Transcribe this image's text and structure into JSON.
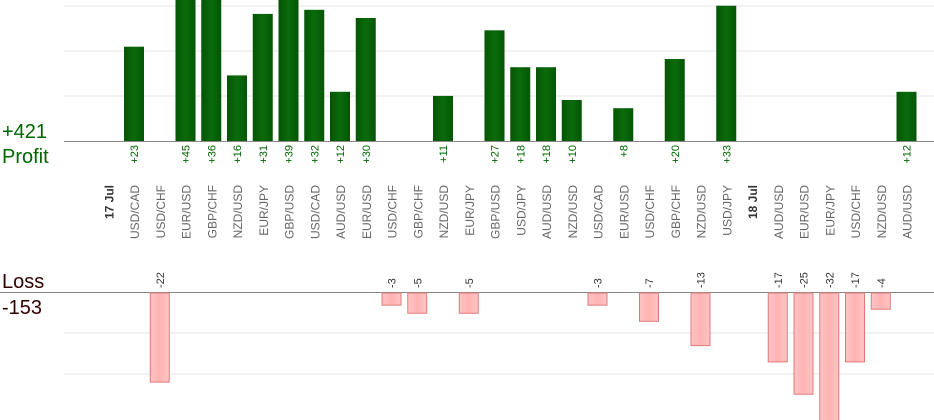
{
  "profit": {
    "label": "Profit",
    "total": "+421"
  },
  "loss": {
    "label": "Loss",
    "total": "-153"
  },
  "colors": {
    "profit_bar": "#0b6b0b",
    "profit_text": "#006600",
    "loss_bar": "#ffb3b3",
    "loss_border": "#e07a7a",
    "grid": "#e6e6e6",
    "axis": "#888888"
  },
  "chart_data": {
    "type": "bar",
    "series": [
      {
        "name": "Profit",
        "values": [
          23,
          null,
          45,
          36,
          16,
          31,
          39,
          32,
          12,
          30,
          null,
          null,
          11,
          null,
          27,
          18,
          18,
          10,
          null,
          8,
          null,
          20,
          null,
          33,
          null,
          null,
          null,
          null,
          null,
          null,
          12
        ]
      },
      {
        "name": "Loss",
        "values": [
          null,
          -22,
          null,
          null,
          null,
          null,
          null,
          null,
          null,
          null,
          -3,
          -5,
          null,
          -5,
          null,
          null,
          null,
          null,
          -3,
          null,
          -7,
          null,
          -13,
          null,
          null,
          -17,
          -25,
          -32,
          -17,
          -4,
          null
        ]
      }
    ],
    "categories": [
      "USD/CAD",
      "USD/CHF",
      "EUR/USD",
      "GBP/CHF",
      "NZD/USD",
      "EUR/JPY",
      "GBP/USD",
      "USD/CAD",
      "AUD/USD",
      "EUR/USD",
      "USD/CHF",
      "GBP/CHF",
      "NZD/USD",
      "EUR/JPY",
      "GBP/USD",
      "USD/JPY",
      "AUD/USD",
      "NZD/USD",
      "USD/CAD",
      "EUR/USD",
      "USD/CHF",
      "GBP/CHF",
      "NZD/USD",
      "USD/JPY",
      "18 Jul",
      "AUD/USD",
      "EUR/USD",
      "EUR/JPY",
      "USD/CHF",
      "NZD/USD",
      "AUD/USD"
    ],
    "date_labels": [
      {
        "label": "17 Jul",
        "before_index": 0
      }
    ],
    "profit_labels": [
      "+23",
      "",
      "+45",
      "+36",
      "+16",
      "+31",
      "+39",
      "+32",
      "+12",
      "+30",
      "",
      "",
      "+11",
      "",
      "+27",
      "+18",
      "+18",
      "+10",
      "",
      "+8",
      "",
      "+20",
      "",
      "+33",
      "",
      "",
      "",
      "",
      "",
      "",
      "+12"
    ],
    "loss_labels": [
      "",
      "-22",
      "",
      "",
      "",
      "",
      "",
      "",
      "",
      "",
      "-3",
      "-5",
      "",
      "-5",
      "",
      "",
      "",
      "",
      "-3",
      "",
      "-7",
      "",
      "-13",
      "",
      "",
      "-17",
      "-25",
      "-32",
      "-17",
      "-4",
      ""
    ]
  }
}
